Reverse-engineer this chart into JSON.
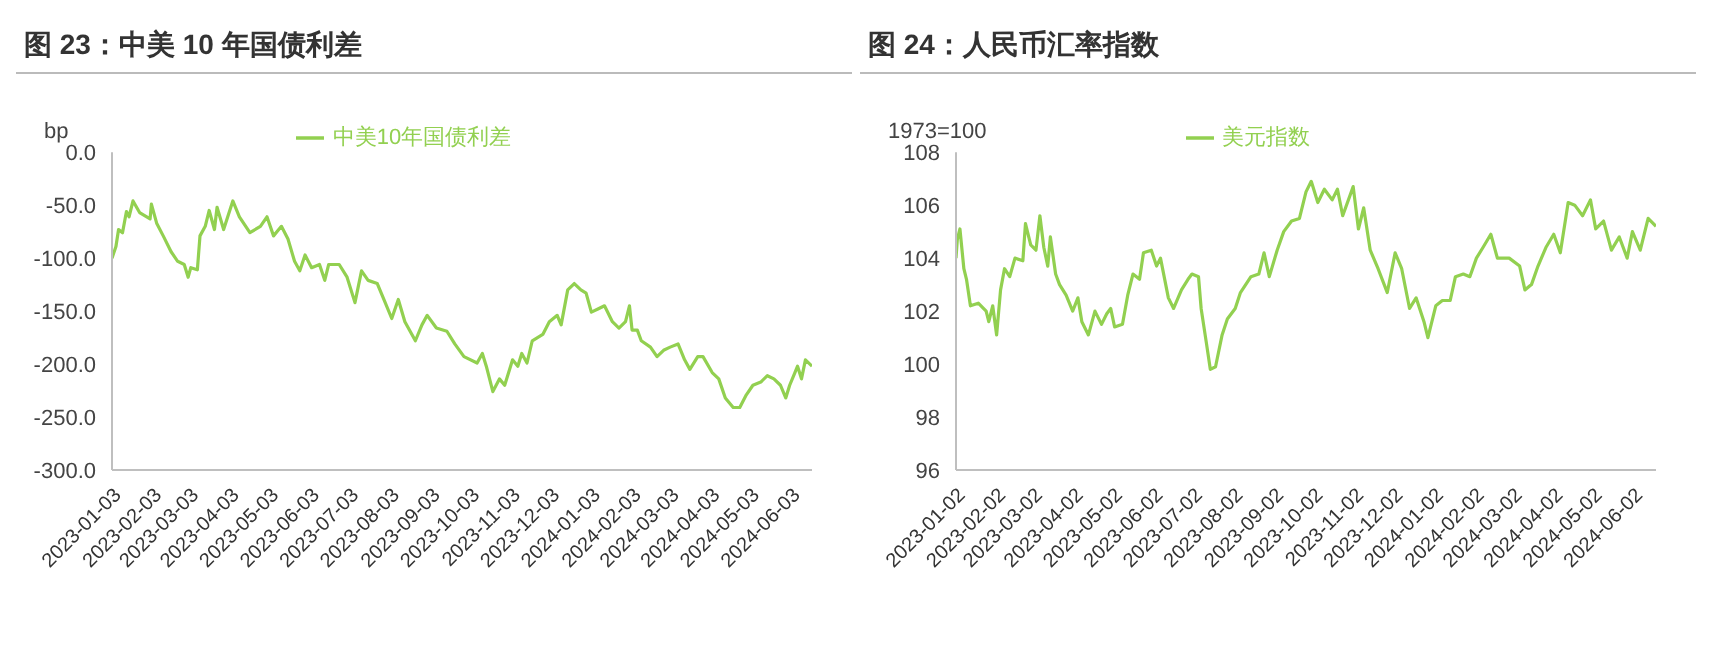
{
  "chart_data": [
    {
      "type": "line",
      "title": "图 23：中美 10 年国债利差",
      "ylabel": "bp",
      "legend": "top",
      "xlim": [
        "2023-01-03",
        "2024-06-19"
      ],
      "xticks": [
        "2023-01-03",
        "2023-02-03",
        "2023-03-03",
        "2023-04-03",
        "2023-05-03",
        "2023-06-03",
        "2023-07-03",
        "2023-08-03",
        "2023-09-03",
        "2023-10-03",
        "2023-11-03",
        "2023-12-03",
        "2024-01-03",
        "2024-02-03",
        "2024-03-03",
        "2024-04-03",
        "2024-05-03",
        "2024-06-03"
      ],
      "ylim": [
        -300,
        0
      ],
      "yticks": [
        {
          "value": -300,
          "label": "-300.0"
        },
        {
          "value": -250,
          "label": "-250.0"
        },
        {
          "value": -200,
          "label": "-200.0"
        },
        {
          "value": -150,
          "label": "-150.0"
        },
        {
          "value": -100,
          "label": "-100.0"
        },
        {
          "value": -50,
          "label": "-50.0"
        },
        {
          "value": 0,
          "label": "0.0"
        }
      ],
      "x": [
        "2023-01-03",
        "2023-01-06",
        "2023-01-08",
        "2023-01-11",
        "2023-01-14",
        "2023-01-16",
        "2023-01-19",
        "2023-01-24",
        "2023-02-01",
        "2023-02-02",
        "2023-02-06",
        "2023-02-11",
        "2023-02-17",
        "2023-02-22",
        "2023-02-27",
        "2023-03-02",
        "2023-03-04",
        "2023-03-09",
        "2023-03-11",
        "2023-03-15",
        "2023-03-18",
        "2023-03-22",
        "2023-03-24",
        "2023-03-29",
        "2023-04-05",
        "2023-04-10",
        "2023-04-18",
        "2023-04-26",
        "2023-05-01",
        "2023-05-06",
        "2023-05-12",
        "2023-05-17",
        "2023-05-22",
        "2023-05-26",
        "2023-05-30",
        "2023-06-04",
        "2023-06-10",
        "2023-06-14",
        "2023-06-17",
        "2023-06-25",
        "2023-07-01",
        "2023-07-07",
        "2023-07-12",
        "2023-07-17",
        "2023-07-24",
        "2023-07-29",
        "2023-08-04",
        "2023-08-09",
        "2023-08-14",
        "2023-08-22",
        "2023-08-27",
        "2023-08-31",
        "2023-09-07",
        "2023-09-15",
        "2023-09-21",
        "2023-09-28",
        "2023-10-08",
        "2023-10-12",
        "2023-10-15",
        "2023-10-20",
        "2023-10-25",
        "2023-10-29",
        "2023-11-04",
        "2023-11-08",
        "2023-11-11",
        "2023-11-15",
        "2023-11-19",
        "2023-11-27",
        "2023-12-02",
        "2023-12-08",
        "2023-12-11",
        "2023-12-16",
        "2023-12-21",
        "2023-12-26",
        "2023-12-30",
        "2024-01-03",
        "2024-01-08",
        "2024-01-13",
        "2024-01-19",
        "2024-01-24",
        "2024-01-29",
        "2024-02-01",
        "2024-02-03",
        "2024-02-07",
        "2024-02-10",
        "2024-02-17",
        "2024-02-22",
        "2024-02-27",
        "2024-03-03",
        "2024-03-09",
        "2024-03-14",
        "2024-03-18",
        "2024-03-24",
        "2024-03-28",
        "2024-04-04",
        "2024-04-09",
        "2024-04-14",
        "2024-04-20",
        "2024-04-25",
        "2024-04-30",
        "2024-05-05",
        "2024-05-11",
        "2024-05-16",
        "2024-05-21",
        "2024-05-26",
        "2024-05-30",
        "2024-06-02",
        "2024-06-06",
        "2024-06-08",
        "2024-06-11",
        "2024-06-14",
        "2024-06-19"
      ],
      "series": [
        {
          "name": "中美10年国债利差",
          "color": "#92d050",
          "values": [
            -100,
            -89,
            -73,
            -76,
            -56,
            -61,
            -46,
            -57,
            -63,
            -49,
            -67,
            -79,
            -94,
            -103,
            -106,
            -118,
            -109,
            -111,
            -79,
            -70,
            -55,
            -73,
            -52,
            -73,
            -46,
            -61,
            -76,
            -70,
            -61,
            -79,
            -70,
            -82,
            -103,
            -112,
            -97,
            -109,
            -106,
            -121,
            -106,
            -106,
            -118,
            -142,
            -112,
            -121,
            -124,
            -139,
            -157,
            -139,
            -160,
            -178,
            -163,
            -154,
            -166,
            -169,
            -181,
            -193,
            -199,
            -190,
            -202,
            -226,
            -214,
            -220,
            -196,
            -202,
            -190,
            -199,
            -178,
            -172,
            -160,
            -154,
            -163,
            -130,
            -124,
            -130,
            -133,
            -151,
            -148,
            -145,
            -160,
            -166,
            -160,
            -145,
            -168,
            -168,
            -178,
            -184,
            -193,
            -187,
            -184,
            -181,
            -196,
            -205,
            -193,
            -193,
            -208,
            -214,
            -232,
            -241,
            -241,
            -229,
            -220,
            -217,
            -211,
            -214,
            -220,
            -232,
            -220,
            -208,
            -202,
            -214,
            -196,
            -202
          ]
        }
      ]
    },
    {
      "type": "line",
      "title": "图 24：人民币汇率指数",
      "ylabel": "1973=100",
      "legend": "top",
      "xlim": [
        "2023-01-02",
        "2024-06-19"
      ],
      "xticks": [
        "2023-01-02",
        "2023-02-02",
        "2023-03-02",
        "2023-04-02",
        "2023-05-02",
        "2023-06-02",
        "2023-07-02",
        "2023-08-02",
        "2023-09-02",
        "2023-10-02",
        "2023-11-02",
        "2023-12-02",
        "2024-01-02",
        "2024-02-02",
        "2024-03-02",
        "2024-04-02",
        "2024-05-02",
        "2024-06-02"
      ],
      "ylim": [
        96,
        108
      ],
      "yticks": [
        96,
        98,
        100,
        102,
        104,
        106,
        108
      ],
      "x": [
        "2023-01-02",
        "2023-01-03",
        "2023-01-05",
        "2023-01-08",
        "2023-01-10",
        "2023-01-13",
        "2023-01-19",
        "2023-01-25",
        "2023-01-27",
        "2023-01-30",
        "2023-02-02",
        "2023-02-05",
        "2023-02-08",
        "2023-02-12",
        "2023-02-16",
        "2023-02-22",
        "2023-02-24",
        "2023-02-28",
        "2023-03-04",
        "2023-03-07",
        "2023-03-10",
        "2023-03-13",
        "2023-03-15",
        "2023-03-19",
        "2023-03-22",
        "2023-03-27",
        "2023-04-01",
        "2023-04-05",
        "2023-04-08",
        "2023-04-13",
        "2023-04-18",
        "2023-04-23",
        "2023-04-27",
        "2023-04-30",
        "2023-05-03",
        "2023-05-09",
        "2023-05-13",
        "2023-05-17",
        "2023-05-22",
        "2023-05-25",
        "2023-05-31",
        "2023-06-04",
        "2023-06-07",
        "2023-06-13",
        "2023-06-17",
        "2023-06-23",
        "2023-06-28",
        "2023-07-01",
        "2023-07-06",
        "2023-07-08",
        "2023-07-12",
        "2023-07-15",
        "2023-07-19",
        "2023-07-24",
        "2023-07-28",
        "2023-08-03",
        "2023-08-07",
        "2023-08-15",
        "2023-08-21",
        "2023-08-25",
        "2023-08-29",
        "2023-09-04",
        "2023-09-09",
        "2023-09-15",
        "2023-09-21",
        "2023-09-26",
        "2023-09-30",
        "2023-10-05",
        "2023-10-10",
        "2023-10-16",
        "2023-10-20",
        "2023-10-24",
        "2023-11-01",
        "2023-11-05",
        "2023-11-09",
        "2023-11-14",
        "2023-11-20",
        "2023-11-27",
        "2023-12-03",
        "2023-12-08",
        "2023-12-14",
        "2023-12-19",
        "2023-12-25",
        "2023-12-28",
        "2024-01-03",
        "2024-01-08",
        "2024-01-14",
        "2024-01-18",
        "2024-01-24",
        "2024-01-29",
        "2024-02-03",
        "2024-02-08",
        "2024-02-14",
        "2024-02-19",
        "2024-02-28",
        "2024-03-07",
        "2024-03-11",
        "2024-03-16",
        "2024-03-21",
        "2024-03-27",
        "2024-04-02",
        "2024-04-07",
        "2024-04-13",
        "2024-04-18",
        "2024-04-24",
        "2024-04-30",
        "2024-05-04",
        "2024-05-10",
        "2024-05-16",
        "2024-05-22",
        "2024-05-28",
        "2024-06-01",
        "2024-06-07",
        "2024-06-13",
        "2024-06-19"
      ],
      "series": [
        {
          "name": "美元指数",
          "color": "#92d050",
          "values": [
            104.0,
            104.7,
            105.1,
            103.6,
            103.2,
            102.2,
            102.3,
            102.0,
            101.6,
            102.2,
            101.1,
            102.8,
            103.6,
            103.3,
            104.0,
            103.9,
            105.3,
            104.5,
            104.3,
            105.6,
            104.4,
            103.7,
            104.8,
            103.4,
            103.0,
            102.6,
            102.0,
            102.5,
            101.6,
            101.1,
            102.0,
            101.5,
            101.9,
            102.1,
            101.4,
            101.5,
            102.6,
            103.4,
            103.2,
            104.2,
            104.3,
            103.7,
            104.0,
            102.5,
            102.1,
            102.8,
            103.2,
            103.4,
            103.3,
            102.1,
            100.8,
            99.8,
            99.9,
            101.1,
            101.7,
            102.1,
            102.7,
            103.3,
            103.4,
            104.2,
            103.3,
            104.3,
            105.0,
            105.4,
            105.5,
            106.5,
            106.9,
            106.1,
            106.6,
            106.2,
            106.6,
            105.6,
            106.7,
            105.1,
            105.9,
            104.3,
            103.6,
            102.7,
            104.2,
            103.6,
            102.1,
            102.5,
            101.6,
            101.0,
            102.2,
            102.4,
            102.4,
            103.3,
            103.4,
            103.3,
            104.0,
            104.4,
            104.9,
            104.0,
            104.0,
            103.7,
            102.8,
            103.0,
            103.7,
            104.4,
            104.9,
            104.2,
            106.1,
            106.0,
            105.6,
            106.2,
            105.1,
            105.4,
            104.3,
            104.8,
            104.0,
            105.0,
            104.3,
            105.5,
            105.2
          ]
        }
      ]
    }
  ]
}
